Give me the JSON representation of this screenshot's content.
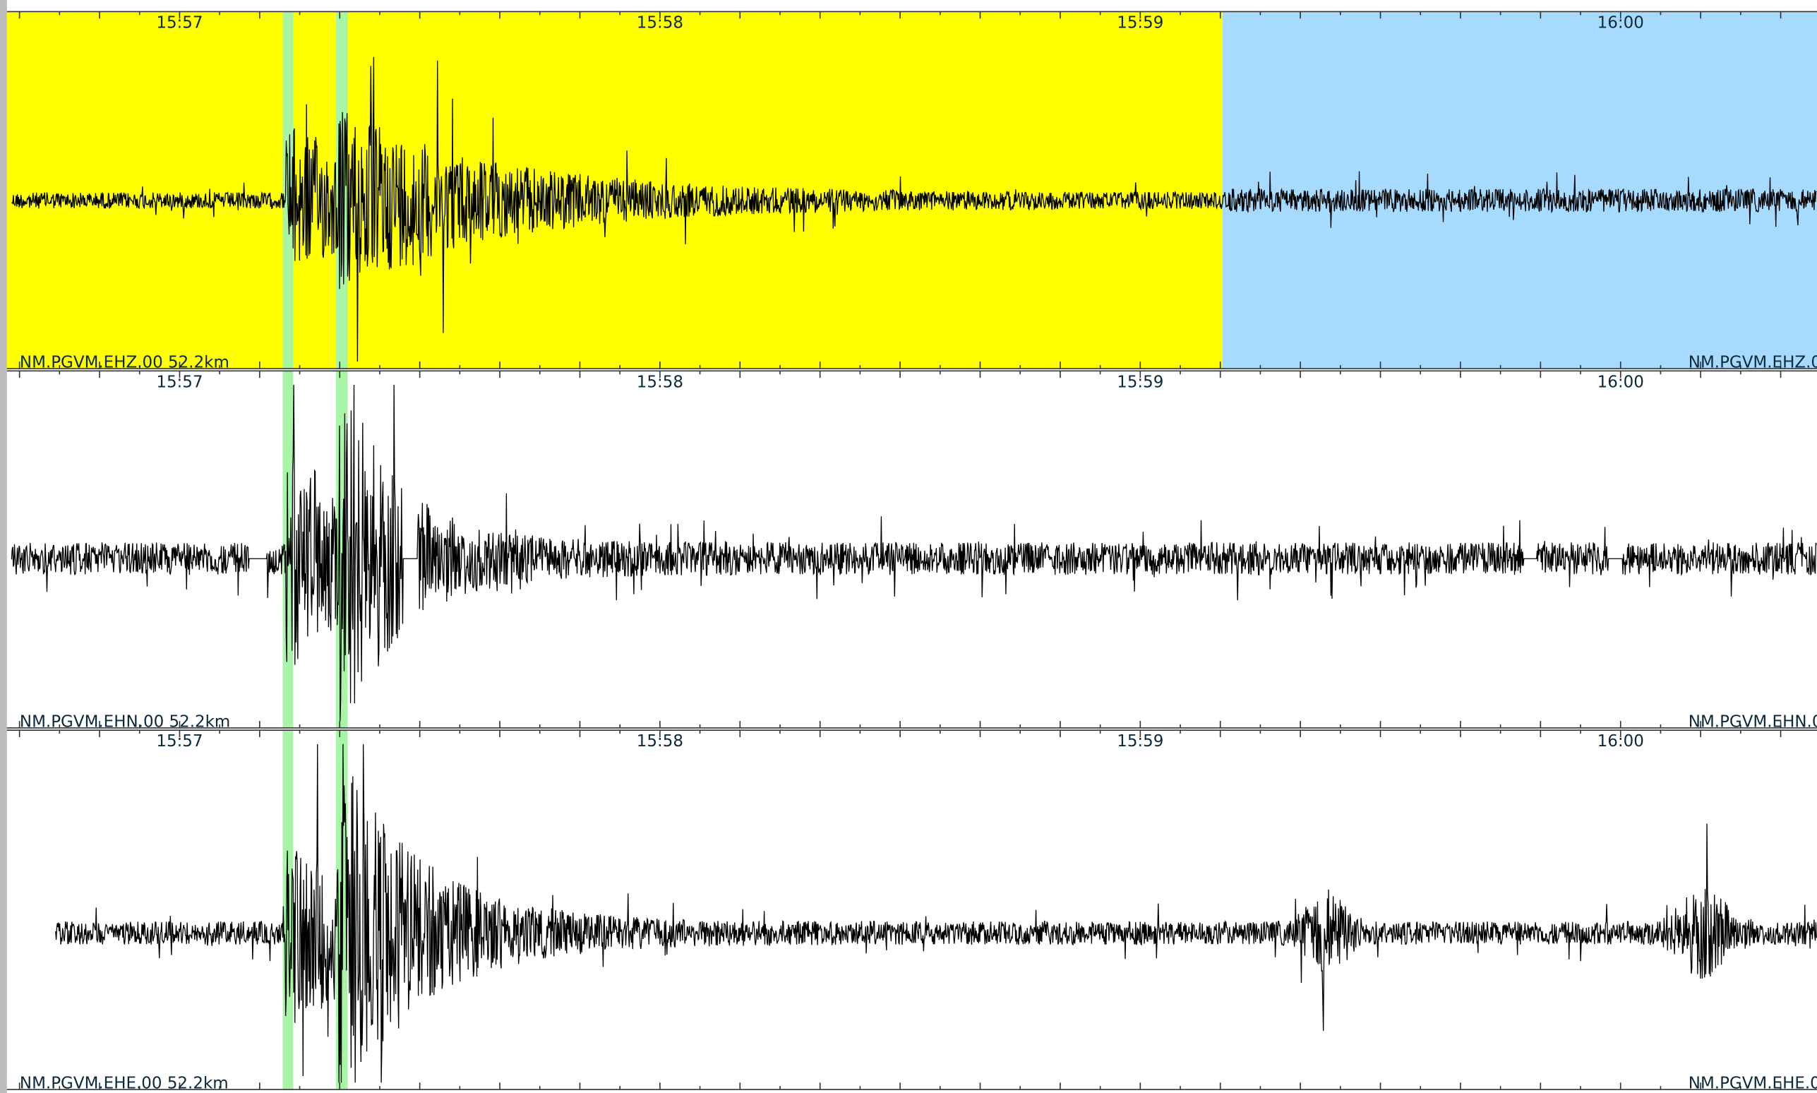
{
  "panels": [
    {
      "channel_label": "NM.PGVM.EHZ.00 52.2km",
      "time_labels": [
        "15:57",
        "15:58",
        "15:59",
        "16:00"
      ]
    },
    {
      "channel_label": "NM.PGVM.EHN.00 52.2km",
      "time_labels": [
        "15:57",
        "15:58",
        "15:59",
        "16:00"
      ]
    },
    {
      "channel_label": "NM.PGVM.EHE.00 52.2km",
      "time_labels": [
        "15:57",
        "15:58",
        "15:59",
        "16:00"
      ]
    }
  ]
}
